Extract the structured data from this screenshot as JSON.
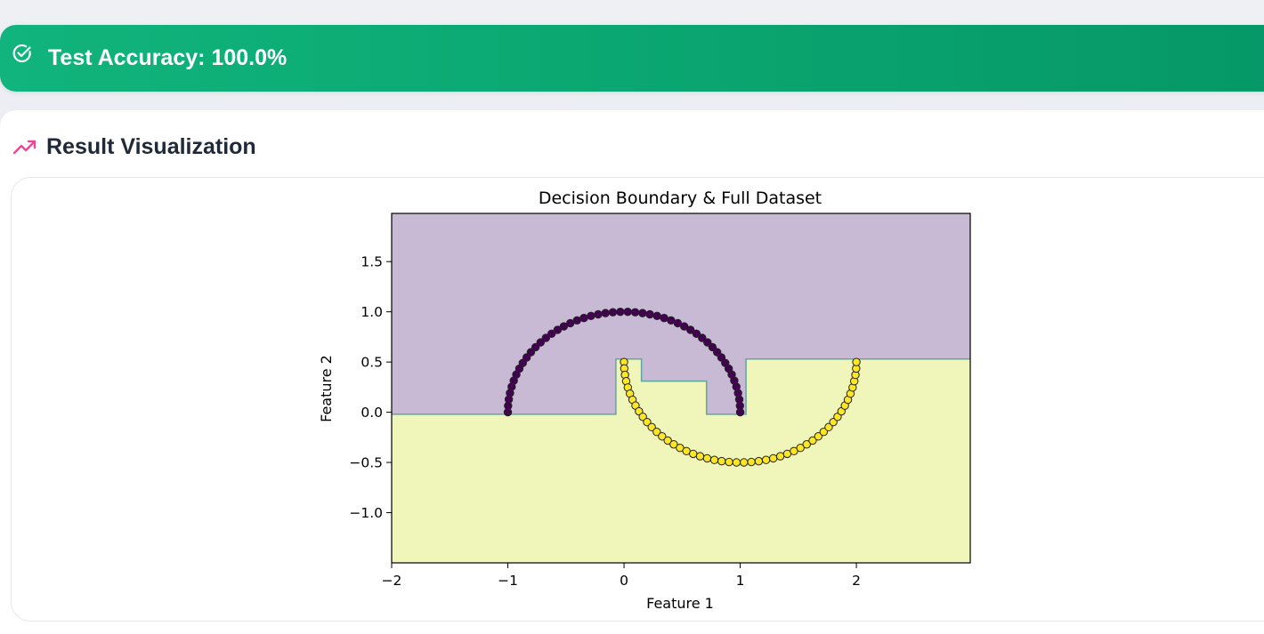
{
  "banner": {
    "icon": "check-circle-icon",
    "text": "Test Accuracy: 100.0%",
    "color": "#0aa570"
  },
  "section": {
    "icon": "trending-up-icon",
    "title": "Result Visualization",
    "icon_color": "#ec4899"
  },
  "chart_data": {
    "type": "scatter",
    "title": "Decision Boundary & Full Dataset",
    "xlabel": "Feature 1",
    "ylabel": "Feature 2",
    "xlim": [
      -2,
      2.98
    ],
    "ylim": [
      -1.5,
      1.98
    ],
    "xticks": [
      -2,
      -1,
      0,
      1,
      2
    ],
    "xtick_labels": [
      "−2",
      "−1",
      "0",
      "1",
      "2"
    ],
    "yticks": [
      -1.0,
      -0.5,
      0.0,
      0.5,
      1.0,
      1.5
    ],
    "ytick_labels": [
      "−1.0",
      "−0.5",
      "0.0",
      "0.5",
      "1.0",
      "1.5"
    ],
    "grid": false,
    "series": [
      {
        "class": 0,
        "color": "#440154",
        "shape": "upper-half-circle",
        "center": [
          0,
          0
        ],
        "radius": 1,
        "n_points": 50
      },
      {
        "class": 1,
        "color": "#fde725",
        "shape": "lower-half-circle",
        "center": [
          1,
          0.5
        ],
        "radius": 1,
        "n_points": 50
      }
    ],
    "decision_regions": {
      "class_0_color": "#c8b9d4",
      "class_1_color": "#f0f5b9",
      "boundary_color": "#5fa89a",
      "boundary": [
        [
          -2.0,
          -0.02
        ],
        [
          -0.07,
          -0.02
        ],
        [
          -0.07,
          0.53
        ],
        [
          0.15,
          0.53
        ],
        [
          0.15,
          0.31
        ],
        [
          0.71,
          0.31
        ],
        [
          0.71,
          -0.02
        ],
        [
          1.05,
          -0.02
        ],
        [
          1.05,
          0.53
        ],
        [
          2.98,
          0.53
        ]
      ]
    }
  }
}
